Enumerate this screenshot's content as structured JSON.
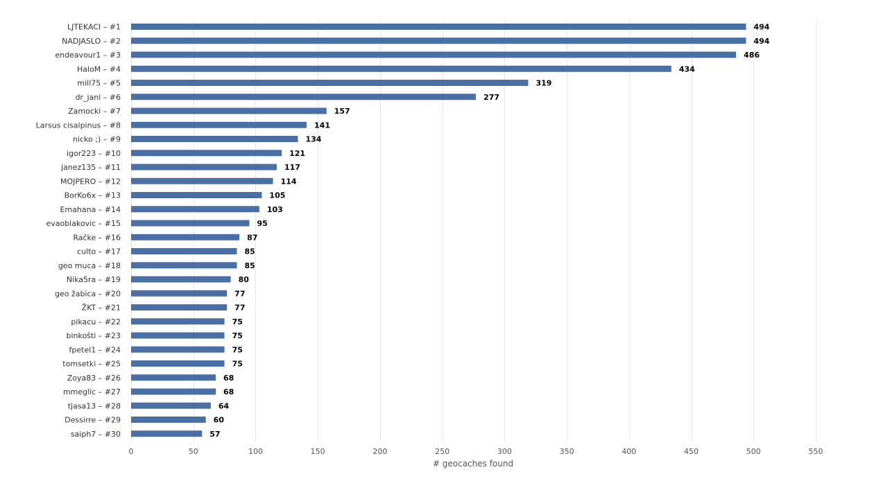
{
  "colors": {
    "bar": "#4a6fa5",
    "grid": "#e6e6e6"
  },
  "chart_data": {
    "type": "bar",
    "orientation": "horizontal",
    "title": "",
    "xlabel": "# geocaches found",
    "ylabel": "",
    "xlim": [
      0,
      550
    ],
    "x_ticks": [
      0,
      50,
      100,
      150,
      200,
      250,
      300,
      350,
      400,
      450,
      500,
      550
    ],
    "grid": true,
    "legend": "none",
    "data_labels": true,
    "categories": [
      "LJTEKACI – #1",
      "NADJASLO – #2",
      "endeavour1 – #3",
      "HaloM – #4",
      "mill75 – #5",
      "dr_jani – #6",
      "Zamocki – #7",
      "Larsus cisalpinus – #8",
      "nicko ;) – #9",
      "igor223 – #10",
      "janez135 – #11",
      "MOJPERO – #12",
      "BorKo6x – #13",
      "Emahana – #14",
      "evaoblakovic – #15",
      "Račke – #16",
      "culto – #17",
      "geo muca – #18",
      "Nika5ra – #19",
      "geo žabica – #20",
      "ŽKT – #21",
      "pikacu – #22",
      "binkošti – #23",
      "fpetel1 – #24",
      "tomsetki – #25",
      "Zoya83 – #26",
      "mmeglic – #27",
      "tjasa13 – #28",
      "Dessirre – #29",
      "saiph7 – #30"
    ],
    "values": [
      494,
      494,
      486,
      434,
      319,
      277,
      157,
      141,
      134,
      121,
      117,
      114,
      105,
      103,
      95,
      87,
      85,
      85,
      80,
      77,
      77,
      75,
      75,
      75,
      75,
      68,
      68,
      64,
      60,
      57
    ]
  }
}
